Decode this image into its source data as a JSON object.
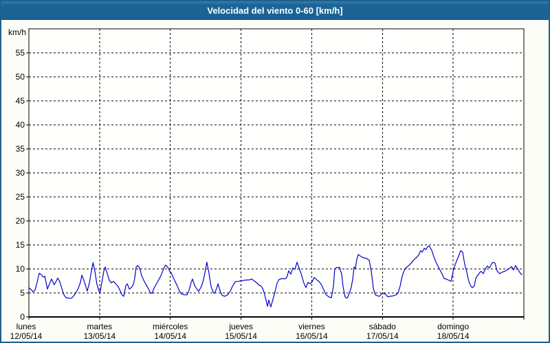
{
  "title": "Velocidad del viento 0-60 [km/h]",
  "colors": {
    "titlebar_blue": "#1c6496",
    "window_border_blue": "#1e5f8d",
    "panel_background": "#fbfdf6",
    "plot_background": "#fffffe",
    "grid_black": "#000000",
    "line_blue": "#0000cd",
    "title_text": "#ffffff"
  },
  "chart_data": {
    "type": "line",
    "title": "Velocidad del viento 0-60 [km/h]",
    "ylabel_unit": "km/h",
    "ylim": [
      0,
      60
    ],
    "y_ticks": [
      0,
      5,
      10,
      15,
      20,
      25,
      30,
      35,
      40,
      45,
      50,
      55
    ],
    "x_range_hours": [
      0,
      168
    ],
    "grid": "dashed",
    "legend": "none",
    "x_days": [
      {
        "name": "lunes",
        "date": "12/05/14"
      },
      {
        "name": "martes",
        "date": "13/05/14"
      },
      {
        "name": "miércoles",
        "date": "14/05/14"
      },
      {
        "name": "jueves",
        "date": "15/05/14"
      },
      {
        "name": "viernes",
        "date": "16/05/14"
      },
      {
        "name": "sábado",
        "date": "17/05/14"
      },
      {
        "name": "domingo",
        "date": "18/05/14"
      }
    ],
    "series": [
      {
        "name": "velocidad del viento",
        "color": "#0000cd",
        "points": [
          [
            0,
            6.1
          ],
          [
            0.9,
            5.6
          ],
          [
            1.4,
            5.2
          ],
          [
            2.1,
            5.6
          ],
          [
            2.8,
            7.2
          ],
          [
            3.5,
            9.1
          ],
          [
            4.2,
            8.8
          ],
          [
            4.9,
            8.3
          ],
          [
            5.4,
            8.5
          ],
          [
            6.3,
            5.8
          ],
          [
            7,
            6.9
          ],
          [
            7.7,
            7.9
          ],
          [
            8.6,
            6.7
          ],
          [
            9.3,
            7.5
          ],
          [
            9.8,
            8.1
          ],
          [
            10.5,
            7.3
          ],
          [
            11.2,
            5.9
          ],
          [
            11.9,
            4.6
          ],
          [
            12.6,
            4
          ],
          [
            13.5,
            3.9
          ],
          [
            14.5,
            3.9
          ],
          [
            15.4,
            4.5
          ],
          [
            16.1,
            5.2
          ],
          [
            16.8,
            6
          ],
          [
            17.5,
            7.2
          ],
          [
            18,
            8.7
          ],
          [
            18.7,
            7.6
          ],
          [
            19.4,
            6.2
          ],
          [
            19.8,
            5.4
          ],
          [
            20.5,
            7
          ],
          [
            21.2,
            9.5
          ],
          [
            21.8,
            11.3
          ],
          [
            22.4,
            9.5
          ],
          [
            23.1,
            6.8
          ],
          [
            23.8,
            5.3
          ],
          [
            24.2,
            5.2
          ],
          [
            24.7,
            7
          ],
          [
            25.4,
            9.5
          ],
          [
            25.9,
            10.4
          ],
          [
            26.6,
            9
          ],
          [
            27.3,
            7.6
          ],
          [
            28,
            7.1
          ],
          [
            28.7,
            7.4
          ],
          [
            29.6,
            6.8
          ],
          [
            30.3,
            6.3
          ],
          [
            31,
            5.4
          ],
          [
            31.7,
            4.5
          ],
          [
            32.2,
            4.3
          ],
          [
            32.9,
            6.5
          ],
          [
            33.4,
            6.9
          ],
          [
            34.1,
            5.8
          ],
          [
            34.8,
            6.1
          ],
          [
            35.5,
            6.8
          ],
          [
            35.9,
            8
          ],
          [
            36.4,
            10.4
          ],
          [
            36.9,
            10.7
          ],
          [
            37.6,
            10.2
          ],
          [
            38.3,
            8.6
          ],
          [
            39,
            7.6
          ],
          [
            39.9,
            6.6
          ],
          [
            40.6,
            5.8
          ],
          [
            41.3,
            5
          ],
          [
            41.8,
            4.9
          ],
          [
            42.5,
            6
          ],
          [
            43.4,
            7
          ],
          [
            44.3,
            8
          ],
          [
            45,
            8.9
          ],
          [
            45.7,
            10
          ],
          [
            46.4,
            10.8
          ],
          [
            47.1,
            10.4
          ],
          [
            47.8,
            9.5
          ],
          [
            48.3,
            9.2
          ],
          [
            49,
            8.2
          ],
          [
            49.7,
            7.3
          ],
          [
            50.4,
            6.4
          ],
          [
            51.1,
            5.4
          ],
          [
            51.8,
            4.8
          ],
          [
            52.7,
            4.6
          ],
          [
            53.7,
            4.6
          ],
          [
            54.4,
            5.6
          ],
          [
            55.1,
            7.2
          ],
          [
            55.5,
            7.9
          ],
          [
            56.2,
            6.6
          ],
          [
            56.9,
            5.9
          ],
          [
            57.6,
            5.3
          ],
          [
            58.6,
            6.4
          ],
          [
            59.3,
            7.8
          ],
          [
            60,
            10
          ],
          [
            60.4,
            11.4
          ],
          [
            61.1,
            9.2
          ],
          [
            61.8,
            6.4
          ],
          [
            62.5,
            5.2
          ],
          [
            63,
            4.9
          ],
          [
            63.7,
            5.9
          ],
          [
            64.2,
            6.9
          ],
          [
            64.9,
            5.4
          ],
          [
            65.6,
            4.5
          ],
          [
            66.5,
            4.3
          ],
          [
            67.4,
            4.6
          ],
          [
            68.4,
            5.4
          ],
          [
            69.1,
            6.4
          ],
          [
            70,
            7.3
          ],
          [
            70.9,
            7.4
          ],
          [
            71.9,
            7.5
          ],
          [
            72.8,
            7.6
          ],
          [
            73.7,
            7.7
          ],
          [
            74.7,
            7.7
          ],
          [
            75.6,
            7.9
          ],
          [
            76.5,
            7.5
          ],
          [
            77.5,
            7
          ],
          [
            78.2,
            6.6
          ],
          [
            78.9,
            6.4
          ],
          [
            79.6,
            5.6
          ],
          [
            80.3,
            4
          ],
          [
            81,
            2.2
          ],
          [
            81.4,
            3.5
          ],
          [
            82.1,
            2.1
          ],
          [
            82.8,
            3.6
          ],
          [
            83.5,
            5.2
          ],
          [
            84.2,
            7
          ],
          [
            84.9,
            7.8
          ],
          [
            85.9,
            8
          ],
          [
            86.8,
            7.9
          ],
          [
            87.5,
            8.2
          ],
          [
            88.2,
            9.6
          ],
          [
            88.9,
            8.9
          ],
          [
            89.6,
            10.2
          ],
          [
            90.3,
            9.9
          ],
          [
            91,
            11.4
          ],
          [
            91.7,
            10.2
          ],
          [
            92.4,
            9
          ],
          [
            93.3,
            7.1
          ],
          [
            94,
            6.1
          ],
          [
            94.7,
            7.2
          ],
          [
            95.4,
            6.9
          ],
          [
            96.1,
            7.3
          ],
          [
            96.8,
            8.2
          ],
          [
            97.8,
            7.7
          ],
          [
            98.5,
            7.4
          ],
          [
            99.4,
            6.6
          ],
          [
            100.1,
            5.6
          ],
          [
            100.8,
            4.7
          ],
          [
            101.7,
            4.2
          ],
          [
            102.7,
            4
          ],
          [
            103.4,
            6.5
          ],
          [
            103.8,
            10
          ],
          [
            104.5,
            10.3
          ],
          [
            105.5,
            10.3
          ],
          [
            106.2,
            8.8
          ],
          [
            106.6,
            6.4
          ],
          [
            107.3,
            4.2
          ],
          [
            108,
            3.9
          ],
          [
            108.7,
            4.8
          ],
          [
            109.4,
            6.2
          ],
          [
            109.9,
            7.8
          ],
          [
            110.4,
            10.4
          ],
          [
            110.8,
            10.1
          ],
          [
            111.3,
            12
          ],
          [
            111.8,
            13
          ],
          [
            112.7,
            12.6
          ],
          [
            113.6,
            12.3
          ],
          [
            114.6,
            12.2
          ],
          [
            115.5,
            11.8
          ],
          [
            116.2,
            9.6
          ],
          [
            116.9,
            6
          ],
          [
            117.6,
            4.6
          ],
          [
            118.3,
            4.4
          ],
          [
            119,
            4.3
          ],
          [
            119.7,
            4.8
          ],
          [
            120.4,
            4.9
          ],
          [
            121.1,
            4.7
          ],
          [
            121.8,
            4.2
          ],
          [
            122.7,
            4.3
          ],
          [
            123.7,
            4.4
          ],
          [
            124.6,
            4.6
          ],
          [
            125.3,
            5
          ],
          [
            126,
            6.4
          ],
          [
            126.5,
            7.9
          ],
          [
            126.9,
            8.9
          ],
          [
            127.6,
            10
          ],
          [
            128.3,
            10.4
          ],
          [
            129.3,
            10.9
          ],
          [
            130,
            11.4
          ],
          [
            130.7,
            11.9
          ],
          [
            131.6,
            12.4
          ],
          [
            132.3,
            12.9
          ],
          [
            133,
            13.8
          ],
          [
            133.5,
            13.5
          ],
          [
            134.2,
            14.3
          ],
          [
            134.7,
            14
          ],
          [
            135.3,
            14.6
          ],
          [
            135.8,
            14.8
          ],
          [
            136.7,
            13.9
          ],
          [
            137.4,
            12.6
          ],
          [
            138.1,
            11.5
          ],
          [
            138.8,
            10.6
          ],
          [
            139.5,
            9.8
          ],
          [
            140.2,
            9
          ],
          [
            140.9,
            8
          ],
          [
            141.6,
            7.9
          ],
          [
            142.3,
            7.7
          ],
          [
            143.3,
            7.4
          ],
          [
            144,
            9.5
          ],
          [
            144.7,
            10.9
          ],
          [
            145.4,
            12
          ],
          [
            146.1,
            13
          ],
          [
            146.5,
            13.8
          ],
          [
            147.2,
            13.5
          ],
          [
            147.9,
            11
          ],
          [
            148.6,
            9.4
          ],
          [
            149.3,
            7.4
          ],
          [
            150,
            6.4
          ],
          [
            150.5,
            6.1
          ],
          [
            151.2,
            6.5
          ],
          [
            151.7,
            8.1
          ],
          [
            152.4,
            8.7
          ],
          [
            153.1,
            9.3
          ],
          [
            153.5,
            9.5
          ],
          [
            154.2,
            9
          ],
          [
            154.9,
            10
          ],
          [
            155.6,
            10.6
          ],
          [
            156.3,
            10.2
          ],
          [
            157,
            11
          ],
          [
            157.5,
            11.4
          ],
          [
            158.2,
            11.2
          ],
          [
            158.9,
            9.6
          ],
          [
            159.8,
            9
          ],
          [
            160.5,
            9.3
          ],
          [
            161.5,
            9.5
          ],
          [
            162.4,
            9.8
          ],
          [
            163.3,
            10.2
          ],
          [
            163.8,
            10.5
          ],
          [
            164.5,
            9.8
          ],
          [
            165.2,
            10.7
          ],
          [
            165.9,
            10
          ],
          [
            166.4,
            9.5
          ],
          [
            166.8,
            9.1
          ],
          [
            167.3,
            8.8
          ]
        ]
      }
    ]
  }
}
